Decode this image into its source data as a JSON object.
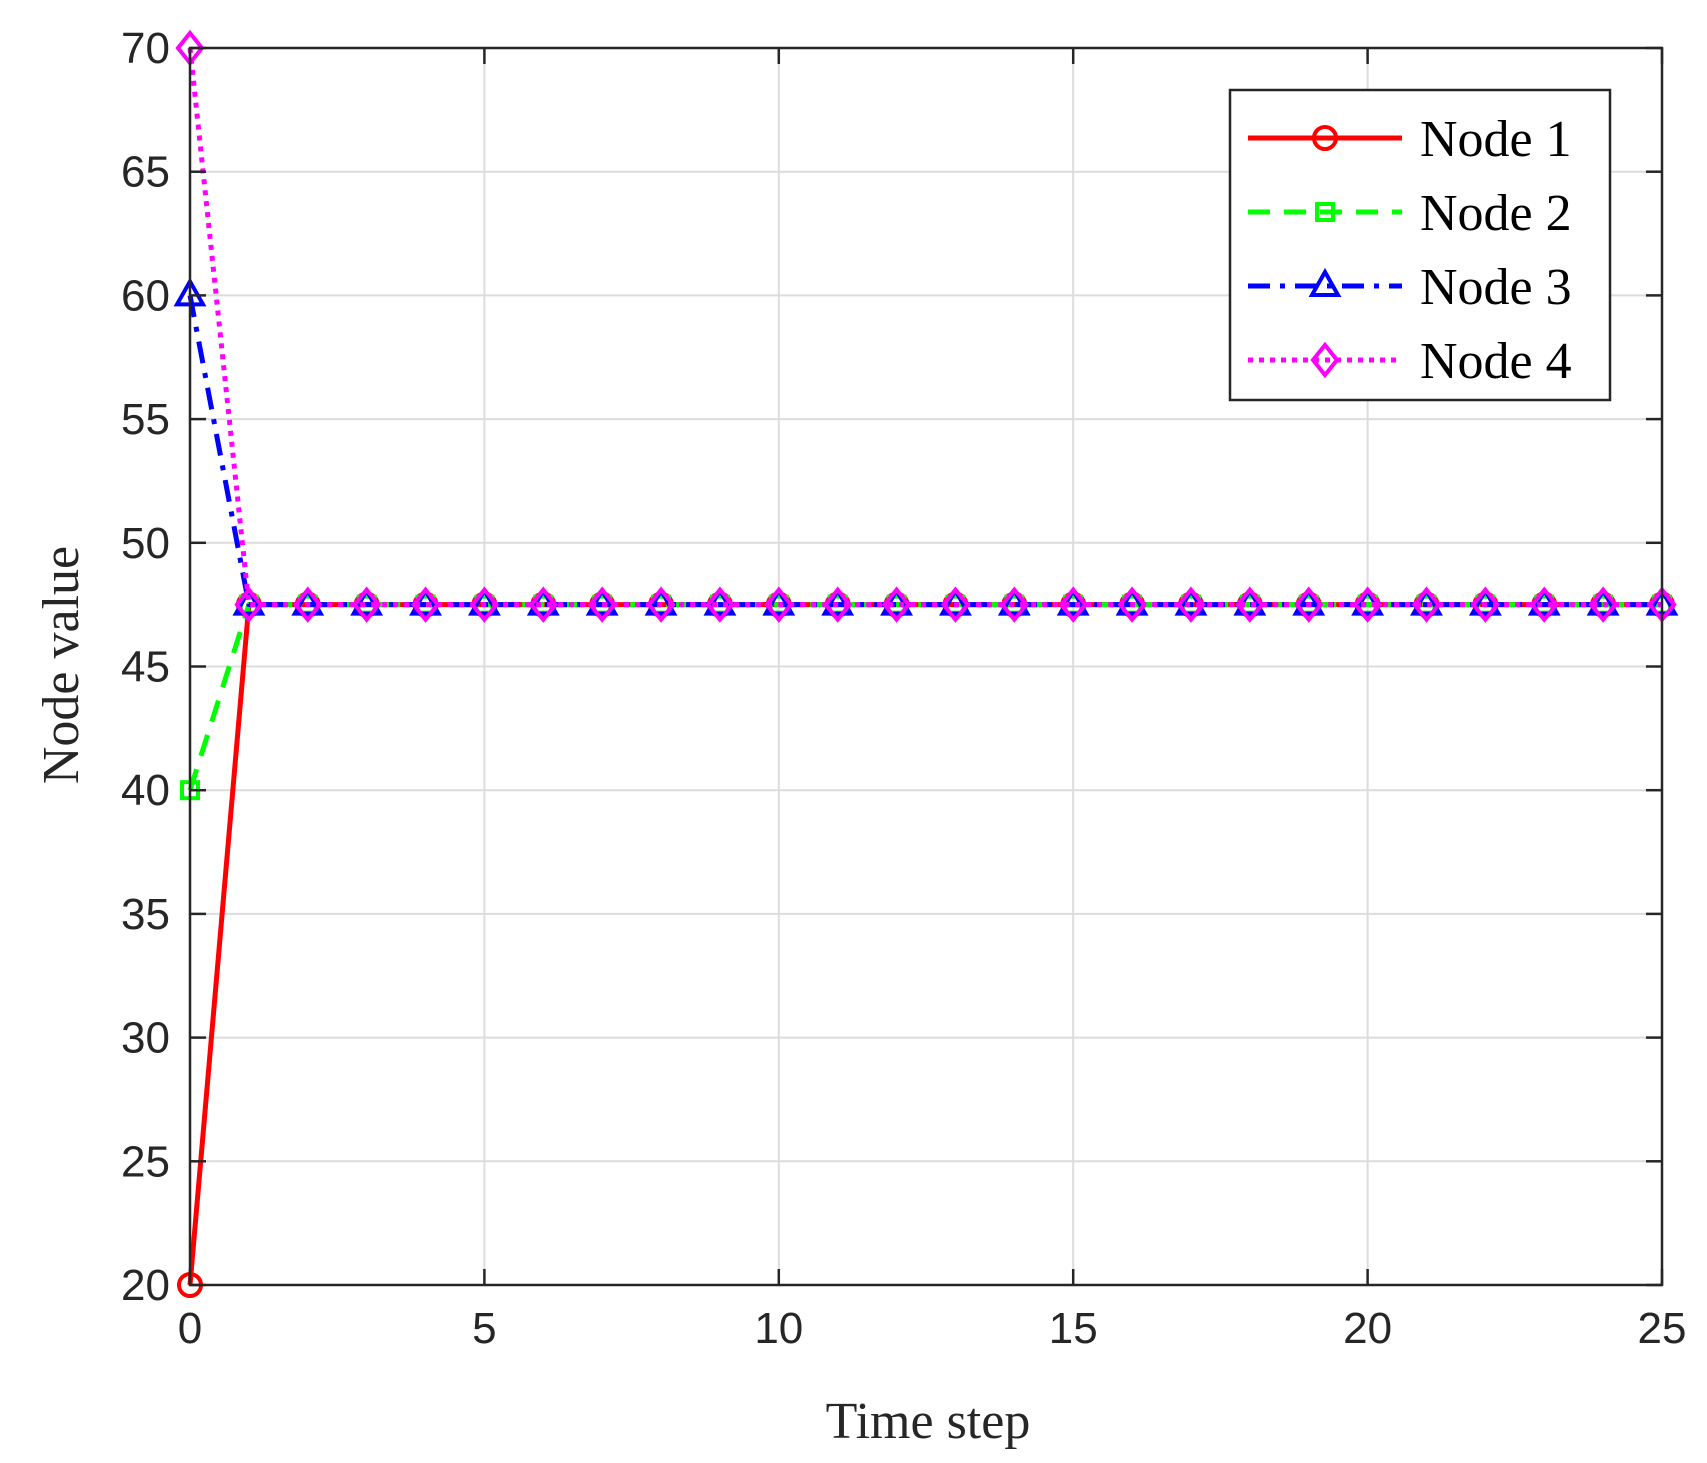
{
  "chart_data": {
    "type": "line",
    "title": "",
    "xlabel": "Time step",
    "ylabel": "Node value",
    "xlim": [
      0,
      25
    ],
    "ylim": [
      20,
      70
    ],
    "xticks": [
      0,
      5,
      10,
      15,
      20,
      25
    ],
    "xtick_labels": [
      "0",
      "5",
      "10",
      "15",
      "20",
      "25"
    ],
    "yticks": [
      20,
      25,
      30,
      35,
      40,
      45,
      50,
      55,
      60,
      65,
      70
    ],
    "ytick_labels": [
      "20",
      "25",
      "30",
      "35",
      "40",
      "45",
      "50",
      "55",
      "60",
      "65",
      "70"
    ],
    "grid": true,
    "legend_position": "top-right",
    "x": [
      0,
      1,
      2,
      3,
      4,
      5,
      6,
      7,
      8,
      9,
      10,
      11,
      12,
      13,
      14,
      15,
      16,
      17,
      18,
      19,
      20,
      21,
      22,
      23,
      24,
      25
    ],
    "series": [
      {
        "name": "Node 1",
        "color": "#ff0000",
        "line_style": "solid",
        "marker": "circle",
        "values": [
          20,
          47.5,
          47.5,
          47.5,
          47.5,
          47.5,
          47.5,
          47.5,
          47.5,
          47.5,
          47.5,
          47.5,
          47.5,
          47.5,
          47.5,
          47.5,
          47.5,
          47.5,
          47.5,
          47.5,
          47.5,
          47.5,
          47.5,
          47.5,
          47.5,
          47.5
        ]
      },
      {
        "name": "Node 2",
        "color": "#00ff00",
        "line_style": "dashed",
        "marker": "square",
        "values": [
          40,
          47.5,
          47.5,
          47.5,
          47.5,
          47.5,
          47.5,
          47.5,
          47.5,
          47.5,
          47.5,
          47.5,
          47.5,
          47.5,
          47.5,
          47.5,
          47.5,
          47.5,
          47.5,
          47.5,
          47.5,
          47.5,
          47.5,
          47.5,
          47.5,
          47.5
        ]
      },
      {
        "name": "Node 3",
        "color": "#0000ff",
        "line_style": "dashdot",
        "marker": "triangle",
        "values": [
          60,
          47.5,
          47.5,
          47.5,
          47.5,
          47.5,
          47.5,
          47.5,
          47.5,
          47.5,
          47.5,
          47.5,
          47.5,
          47.5,
          47.5,
          47.5,
          47.5,
          47.5,
          47.5,
          47.5,
          47.5,
          47.5,
          47.5,
          47.5,
          47.5,
          47.5
        ]
      },
      {
        "name": "Node 4",
        "color": "#ff00ff",
        "line_style": "dotted",
        "marker": "diamond",
        "values": [
          70,
          47.5,
          47.5,
          47.5,
          47.5,
          47.5,
          47.5,
          47.5,
          47.5,
          47.5,
          47.5,
          47.5,
          47.5,
          47.5,
          47.5,
          47.5,
          47.5,
          47.5,
          47.5,
          47.5,
          47.5,
          47.5,
          47.5,
          47.5,
          47.5,
          47.5
        ]
      }
    ]
  }
}
